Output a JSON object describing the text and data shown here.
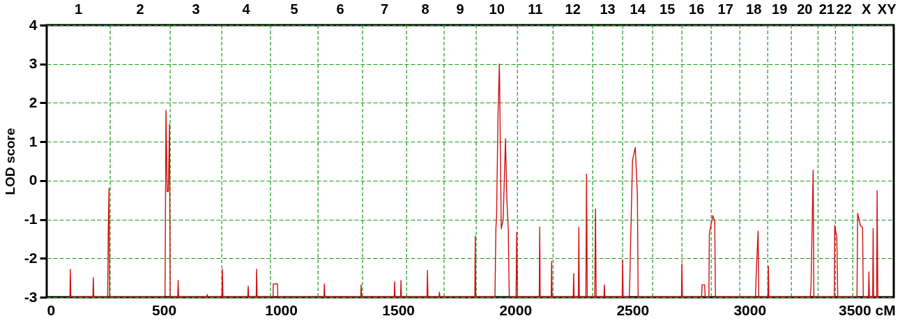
{
  "chart_data": {
    "type": "line",
    "ylabel": "LOD score",
    "xlim": [
      0,
      3615
    ],
    "xticks": [
      0,
      500,
      1000,
      1500,
      2000,
      2500,
      3000,
      {
        "value": 3500,
        "label": "3500 cM"
      }
    ],
    "ylim": [
      -3,
      4
    ],
    "yticks": [
      -3,
      -2,
      -1,
      0,
      1,
      2,
      3,
      4
    ],
    "grid": "y",
    "ref_lines": [
      {
        "axis": "x",
        "value": 271,
        "color": "#1a9a1a",
        "line_style": "dashed"
      },
      {
        "axis": "x",
        "value": 527,
        "color": "#1a9a1a",
        "line_style": "dashed"
      },
      {
        "axis": "x",
        "value": 747,
        "color": "#1a9a1a",
        "line_style": "dashed"
      },
      {
        "axis": "x",
        "value": 955,
        "color": "#1a9a1a",
        "line_style": "dashed"
      },
      {
        "axis": "x",
        "value": 1158,
        "color": "#1a9a1a",
        "line_style": "dashed"
      },
      {
        "axis": "x",
        "value": 1348,
        "color": "#1a9a1a",
        "line_style": "dashed"
      },
      {
        "axis": "x",
        "value": 1536,
        "color": "#1a9a1a",
        "line_style": "dashed"
      },
      {
        "axis": "x",
        "value": 1696,
        "color": "#1a9a1a",
        "line_style": "dashed"
      },
      {
        "axis": "x",
        "value": 1833,
        "color": "#1a9a1a",
        "line_style": "dashed"
      },
      {
        "axis": "x",
        "value": 2009,
        "color": "#1a9a1a",
        "line_style": "dashed"
      },
      {
        "axis": "x",
        "value": 2161,
        "color": "#1a9a1a",
        "line_style": "dashed"
      },
      {
        "axis": "x",
        "value": 2330,
        "color": "#1a9a1a",
        "line_style": "dashed"
      },
      {
        "axis": "x",
        "value": 2458,
        "color": "#1a9a1a",
        "line_style": "dashed"
      },
      {
        "axis": "x",
        "value": 2586,
        "color": "#1a9a1a",
        "line_style": "dashed"
      },
      {
        "axis": "x",
        "value": 2711,
        "color": "#1a9a1a",
        "line_style": "dashed"
      },
      {
        "axis": "x",
        "value": 2836,
        "color": "#1a9a1a",
        "line_style": "dashed"
      },
      {
        "axis": "x",
        "value": 2958,
        "color": "#1a9a1a",
        "line_style": "dashed"
      },
      {
        "axis": "x",
        "value": 3077,
        "color": "#1a9a1a",
        "line_style": "dashed"
      },
      {
        "axis": "x",
        "value": 3178,
        "color": "#1a9a1a",
        "line_style": "dashed"
      },
      {
        "axis": "x",
        "value": 3292,
        "color": "#1a9a1a",
        "line_style": "dashed"
      },
      {
        "axis": "x",
        "value": 3366,
        "color": "#1a9a1a",
        "line_style": "dashed"
      },
      {
        "axis": "x",
        "value": 3440,
        "color": "#1a9a1a",
        "line_style": "dashed"
      }
    ],
    "annotations": [
      "1",
      "2",
      "3",
      "4",
      "5",
      "6",
      "7",
      "8",
      "9",
      "10",
      "11",
      "12",
      "13",
      "14",
      "15",
      "16",
      "17",
      "18",
      "19",
      "20",
      "21",
      "22",
      "X",
      "XY"
    ],
    "series": [
      {
        "color": "#d01010",
        "x": [
          99,
          101,
          103,
          197,
          199,
          201,
          260,
          263,
          266,
          268,
          505,
          509,
          514,
          519,
          524,
          527,
          559,
          561,
          563,
          683,
          685,
          687,
          748,
          750,
          752,
          858,
          860,
          862,
          894,
          896,
          898,
          966,
          967,
          985,
          986,
          1183,
          1185,
          1187,
          1340,
          1342,
          1344,
          1483,
          1485,
          1487,
          1510,
          1512,
          1514,
          1623,
          1625,
          1627,
          1674,
          1676,
          1678,
          1827,
          1829,
          1831,
          1913,
          1917,
          1920,
          1926,
          1932,
          1936,
          1940,
          1948,
          1958,
          1964,
          1970,
          1974,
          2003,
          2006,
          2009,
          2102,
          2104,
          2106,
          2153,
          2155,
          2157,
          2247,
          2249,
          2251,
          2269,
          2271,
          2273,
          2301,
          2304,
          2307,
          2339,
          2342,
          2345,
          2378,
          2380,
          2382,
          2456,
          2458,
          2460,
          2486,
          2488,
          2500,
          2512,
          2521,
          2524,
          2709,
          2711,
          2713,
          2795,
          2797,
          2808,
          2810,
          2826,
          2828,
          2843,
          2851,
          2854,
          3025,
          3027,
          3036,
          3039,
          3078,
          3080,
          3082,
          3259,
          3262,
          3271,
          3274,
          3361,
          3363,
          3372,
          3376,
          3458,
          3461,
          3473,
          3482,
          3485,
          3507,
          3509,
          3511,
          3525,
          3527,
          3529,
          3542,
          3544,
          3547
        ],
        "values": [
          -3,
          -2.28,
          -3,
          -3,
          -2.49,
          -3,
          -3,
          -1.16,
          -0.2,
          -3,
          -3,
          1.81,
          -0.28,
          -0.28,
          1.45,
          -3,
          -3,
          -2.57,
          -3,
          -3,
          -2.93,
          -3,
          -3,
          -2.28,
          -3,
          -3,
          -2.71,
          -3,
          -3,
          -2.28,
          -3,
          -3,
          -2.66,
          -2.66,
          -3,
          -3,
          -2.66,
          -3,
          -3,
          -2.68,
          -3,
          -3,
          -2.6,
          -3,
          -3,
          -2.57,
          -3,
          -3,
          -2.31,
          -3,
          -3,
          -2.87,
          -3,
          -3,
          -1.43,
          -3,
          -3,
          -1.24,
          -0.9,
          1.67,
          3.0,
          0.79,
          -1.24,
          -1.01,
          1.08,
          -0.51,
          -1.28,
          -3,
          -3,
          -1.33,
          -3,
          -3,
          -1.19,
          -3,
          -3,
          -2.08,
          -3,
          -3,
          -2.39,
          -3,
          -3,
          -1.2,
          -3,
          -3,
          0.17,
          -3,
          -3,
          -0.73,
          -3,
          -3,
          -2.68,
          -3,
          -3,
          -2.04,
          -3,
          -3,
          -2.69,
          0.52,
          0.85,
          -0.4,
          -3,
          -3,
          -2.14,
          -3,
          -3,
          -2.68,
          -2.68,
          -3,
          -3,
          -1.36,
          -0.9,
          -1.05,
          -3,
          -3,
          -2.56,
          -1.3,
          -3,
          -3,
          -2.2,
          -3,
          -3,
          -2.7,
          0.27,
          -3,
          -3,
          -1.16,
          -1.46,
          -3,
          -3,
          -0.84,
          -1.16,
          -1.2,
          -3,
          -3,
          -2.35,
          -3,
          -3,
          -1.23,
          -3,
          -3,
          -0.26,
          -3
        ]
      }
    ]
  }
}
